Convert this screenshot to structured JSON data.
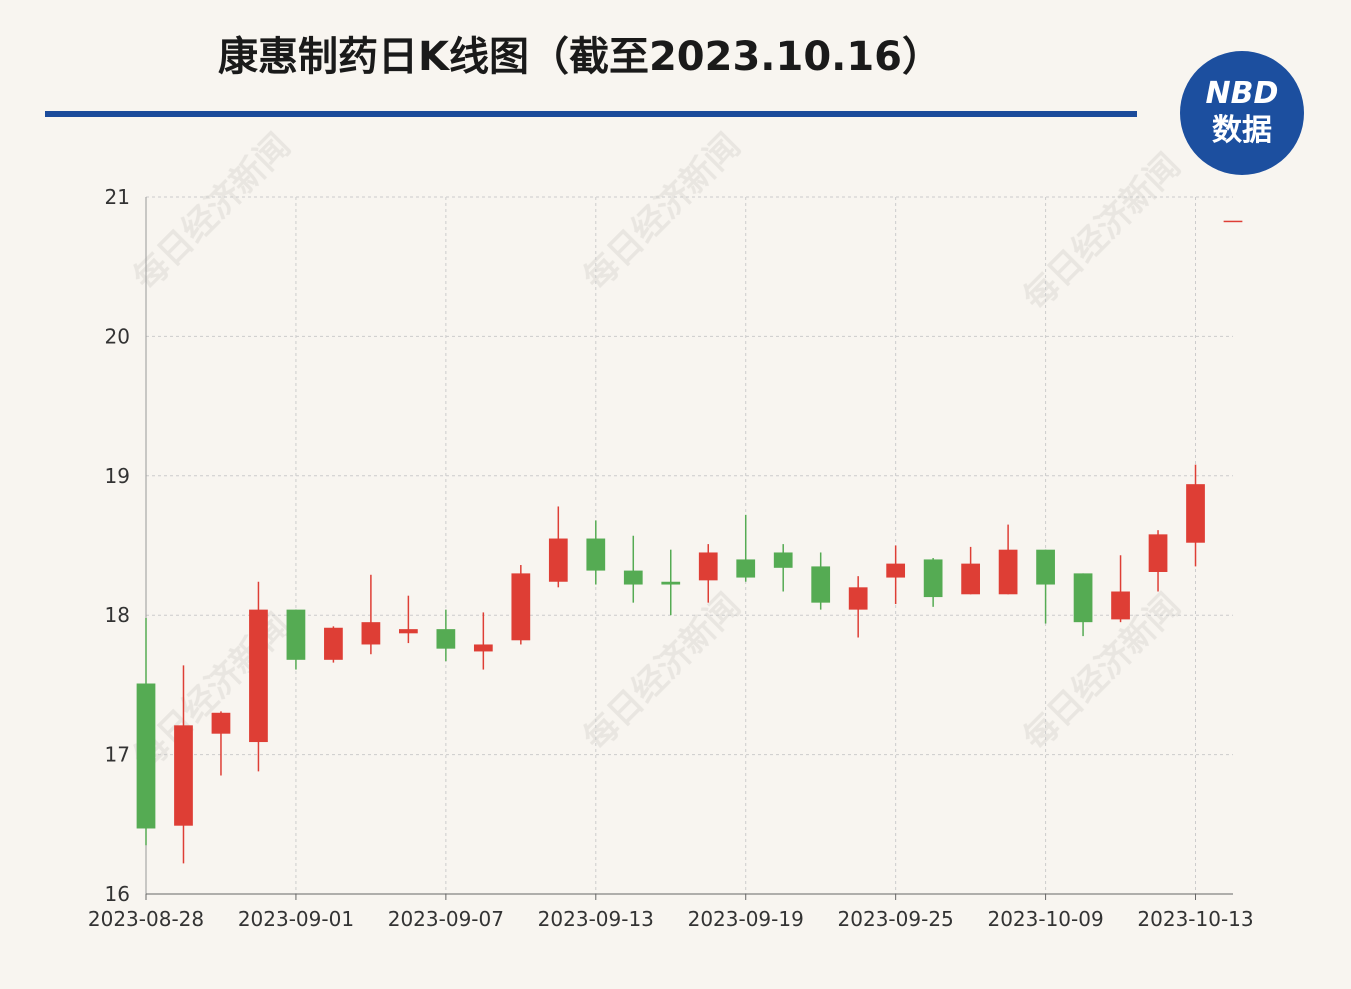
{
  "chart_data": {
    "type": "candlestick",
    "title": "康惠制药日K线图（截至2023.10.16）",
    "logo": {
      "top": "NBD",
      "bottom": "数据"
    },
    "watermark": "每日经济新闻",
    "categories": [
      "2023-08-28",
      null,
      null,
      null,
      "2023-09-01",
      null,
      null,
      null,
      "2023-09-07",
      null,
      null,
      null,
      "2023-09-13",
      null,
      null,
      null,
      "2023-09-19",
      null,
      null,
      null,
      "2023-09-25",
      null,
      null,
      null,
      "2023-10-09",
      null,
      null,
      null,
      "2023-10-13",
      null
    ],
    "open": [
      17.51,
      16.49,
      17.15,
      17.09,
      18.04,
      17.68,
      17.79,
      17.87,
      17.9,
      17.74,
      17.82,
      18.24,
      18.55,
      18.32,
      18.24,
      18.25,
      18.4,
      18.45,
      18.35,
      18.04,
      18.27,
      18.4,
      18.15,
      18.15,
      18.47,
      18.3,
      17.97,
      18.31,
      18.52,
      20.83
    ],
    "high": [
      17.98,
      17.64,
      17.31,
      18.24,
      18.04,
      17.92,
      18.29,
      18.14,
      18.04,
      18.02,
      18.36,
      18.78,
      18.68,
      18.57,
      18.47,
      18.51,
      18.72,
      18.51,
      18.45,
      18.28,
      18.5,
      18.41,
      18.49,
      18.65,
      18.47,
      18.3,
      18.43,
      18.61,
      19.08,
      20.83
    ],
    "low": [
      16.35,
      16.22,
      16.85,
      16.88,
      17.61,
      17.66,
      17.72,
      17.8,
      17.67,
      17.61,
      17.79,
      18.2,
      18.22,
      18.09,
      18.0,
      18.09,
      18.24,
      18.17,
      18.04,
      17.84,
      18.08,
      18.06,
      18.15,
      18.15,
      17.94,
      17.85,
      17.95,
      18.17,
      18.35,
      20.83
    ],
    "close": [
      16.47,
      17.21,
      17.3,
      18.04,
      17.68,
      17.91,
      17.95,
      17.9,
      17.76,
      17.79,
      18.3,
      18.55,
      18.32,
      18.22,
      18.22,
      18.45,
      18.27,
      18.34,
      18.09,
      18.2,
      18.37,
      18.13,
      18.37,
      18.47,
      18.22,
      17.95,
      18.17,
      18.58,
      18.94,
      20.83
    ],
    "up_color": "#de3e35",
    "down_color": "#55ab53",
    "ylim": [
      16,
      21
    ],
    "yticks": [
      16,
      17,
      18,
      19,
      20,
      21
    ],
    "grid": true
  }
}
